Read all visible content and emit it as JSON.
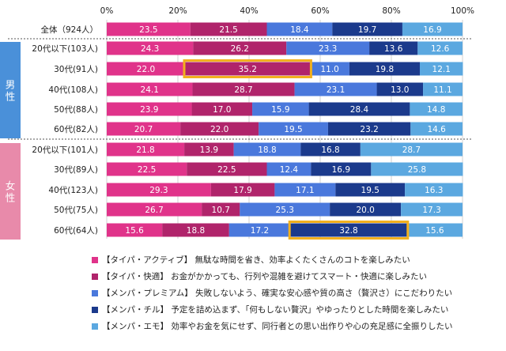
{
  "chart_data": {
    "type": "bar",
    "stacked": true,
    "orientation": "horizontal",
    "x_ticks": [
      "0%",
      "20%",
      "40%",
      "60%",
      "80%",
      "100%"
    ],
    "xlim": [
      0,
      100
    ],
    "categories": [
      "全体（924人）",
      "20代以下(103人)",
      "30代(91人)",
      "40代(108人)",
      "50代(88人)",
      "60代(82人)",
      "20代以下(101人)",
      "30代(89人)",
      "40代(123人)",
      "50代(75人)",
      "60代(64人)"
    ],
    "groups": [
      {
        "label": "男性",
        "color": "#4a90d9",
        "rows": [
          1,
          2,
          3,
          4,
          5
        ]
      },
      {
        "label": "女性",
        "color": "#e88aaa",
        "rows": [
          6,
          7,
          8,
          9,
          10
        ]
      }
    ],
    "series": [
      {
        "name": "【タイパ・アクティブ】 無駄な時間を省き、効率よくたくさんのコトを楽しみたい",
        "color": "#e0338a",
        "values": [
          23.5,
          24.3,
          22.0,
          24.1,
          23.9,
          20.7,
          21.8,
          22.5,
          29.3,
          26.7,
          15.6
        ]
      },
      {
        "name": "【タイパ・快適】 お金がかかっても、行列や混雑を避けてスマート・快適に楽しみたい",
        "color": "#b0246b",
        "values": [
          21.5,
          26.2,
          35.2,
          28.7,
          17.0,
          22.0,
          13.9,
          22.5,
          17.9,
          10.7,
          18.8
        ]
      },
      {
        "name": "【メンパ・プレミアム】 失敗しないよう、確実な安心感や質の高さ（贅沢さ）にこだわりたい",
        "color": "#4a78dc",
        "values": [
          18.4,
          23.3,
          11.0,
          23.1,
          15.9,
          19.5,
          18.8,
          12.4,
          17.1,
          25.3,
          17.2
        ]
      },
      {
        "name": "【メンパ・チル】 予定を詰め込まず、「何もしない贅沢」やゆったりとした時間を楽しみたい",
        "color": "#1b3a8c",
        "values": [
          19.7,
          13.6,
          19.8,
          13.0,
          28.4,
          23.2,
          16.8,
          16.9,
          19.5,
          20.0,
          32.8
        ]
      },
      {
        "name": "【メンパ・エモ】 効率やお金を気にせず、同行者との思い出作りや心の充足感に全振りしたい",
        "color": "#5ba8e0",
        "values": [
          16.9,
          12.6,
          12.1,
          11.1,
          14.8,
          14.6,
          28.7,
          25.8,
          16.3,
          17.3,
          15.6
        ]
      }
    ],
    "highlights": [
      {
        "row": 2,
        "series": 1,
        "color": "#f2b01e"
      },
      {
        "row": 10,
        "series": 3,
        "color": "#f2b01e"
      }
    ],
    "grid": "vertical",
    "legend": "bottom"
  }
}
